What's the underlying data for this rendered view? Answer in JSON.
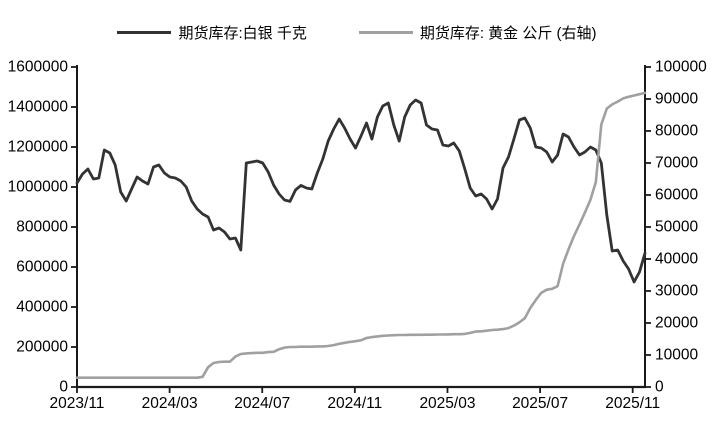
{
  "page": {
    "background": "#ffffff"
  },
  "legend": {
    "items": [
      {
        "label": "期货库存:白银 千克",
        "color": "#333333"
      },
      {
        "label": "期货库存: 黄金 公斤 (右轴)",
        "color": "#a0a0a0"
      }
    ]
  },
  "chart_data": {
    "type": "line",
    "title": "",
    "grid": false,
    "legend_position": "top",
    "x_axis": {
      "tick_labels": [
        "2023/11",
        "2024/03",
        "2024/07",
        "2024/11",
        "2025/03",
        "2025/07",
        "2025/11"
      ]
    },
    "y_axis_left": {
      "range": [
        0,
        1600000
      ],
      "ticks": [
        0,
        200000,
        400000,
        600000,
        800000,
        1000000,
        1200000,
        1400000,
        1600000
      ]
    },
    "y_axis_right": {
      "range": [
        0,
        100000
      ],
      "ticks": [
        0,
        10000,
        20000,
        30000,
        40000,
        50000,
        60000,
        70000,
        80000,
        90000,
        100000
      ]
    },
    "series": [
      {
        "name": "期货库存:白银 千克",
        "axis": "left",
        "color": "#333333",
        "values": [
          1020000,
          1065000,
          1090000,
          1040000,
          1045000,
          1185000,
          1170000,
          1110000,
          975000,
          930000,
          990000,
          1050000,
          1030000,
          1015000,
          1100000,
          1110000,
          1070000,
          1050000,
          1045000,
          1030000,
          1000000,
          930000,
          890000,
          865000,
          850000,
          785000,
          795000,
          775000,
          740000,
          745000,
          685000,
          1120000,
          1125000,
          1130000,
          1120000,
          1075000,
          1010000,
          965000,
          935000,
          928000,
          985000,
          1008000,
          995000,
          990000,
          1070000,
          1140000,
          1230000,
          1290000,
          1340000,
          1295000,
          1240000,
          1195000,
          1255000,
          1320000,
          1240000,
          1350000,
          1405000,
          1420000,
          1310000,
          1230000,
          1350000,
          1410000,
          1435000,
          1420000,
          1310000,
          1290000,
          1285000,
          1210000,
          1205000,
          1220000,
          1180000,
          1090000,
          995000,
          955000,
          965000,
          940000,
          890000,
          940000,
          1095000,
          1150000,
          1240000,
          1335000,
          1345000,
          1295000,
          1200000,
          1195000,
          1175000,
          1125000,
          1160000,
          1265000,
          1250000,
          1200000,
          1160000,
          1175000,
          1200000,
          1185000,
          1120000,
          860000,
          680000,
          685000,
          630000,
          590000,
          525000,
          575000,
          670000
        ]
      },
      {
        "name": "期货库存: 黄金 公斤 (右轴)",
        "axis": "right",
        "color": "#a0a0a0",
        "values": [
          2900,
          2900,
          2900,
          2900,
          2900,
          2900,
          2900,
          2900,
          2900,
          2900,
          2900,
          2900,
          2900,
          2900,
          2900,
          2900,
          2900,
          2900,
          2900,
          2900,
          2900,
          2900,
          2900,
          3200,
          6200,
          7500,
          7800,
          7900,
          7900,
          9500,
          10300,
          10500,
          10600,
          10700,
          10700,
          10900,
          11000,
          11800,
          12300,
          12500,
          12500,
          12600,
          12600,
          12600,
          12700,
          12700,
          12800,
          13100,
          13500,
          13800,
          14100,
          14300,
          14600,
          15300,
          15600,
          15800,
          16000,
          16100,
          16200,
          16250,
          16250,
          16300,
          16300,
          16300,
          16350,
          16350,
          16400,
          16400,
          16450,
          16500,
          16500,
          16600,
          16900,
          17300,
          17400,
          17600,
          17800,
          17900,
          18100,
          18400,
          19200,
          20200,
          21500,
          24700,
          27200,
          29400,
          30400,
          30700,
          31500,
          38500,
          43000,
          47200,
          50800,
          54500,
          58500,
          64000,
          82000,
          87000,
          88300,
          89200,
          90200,
          90700,
          91100,
          91500,
          91900
        ]
      }
    ]
  }
}
